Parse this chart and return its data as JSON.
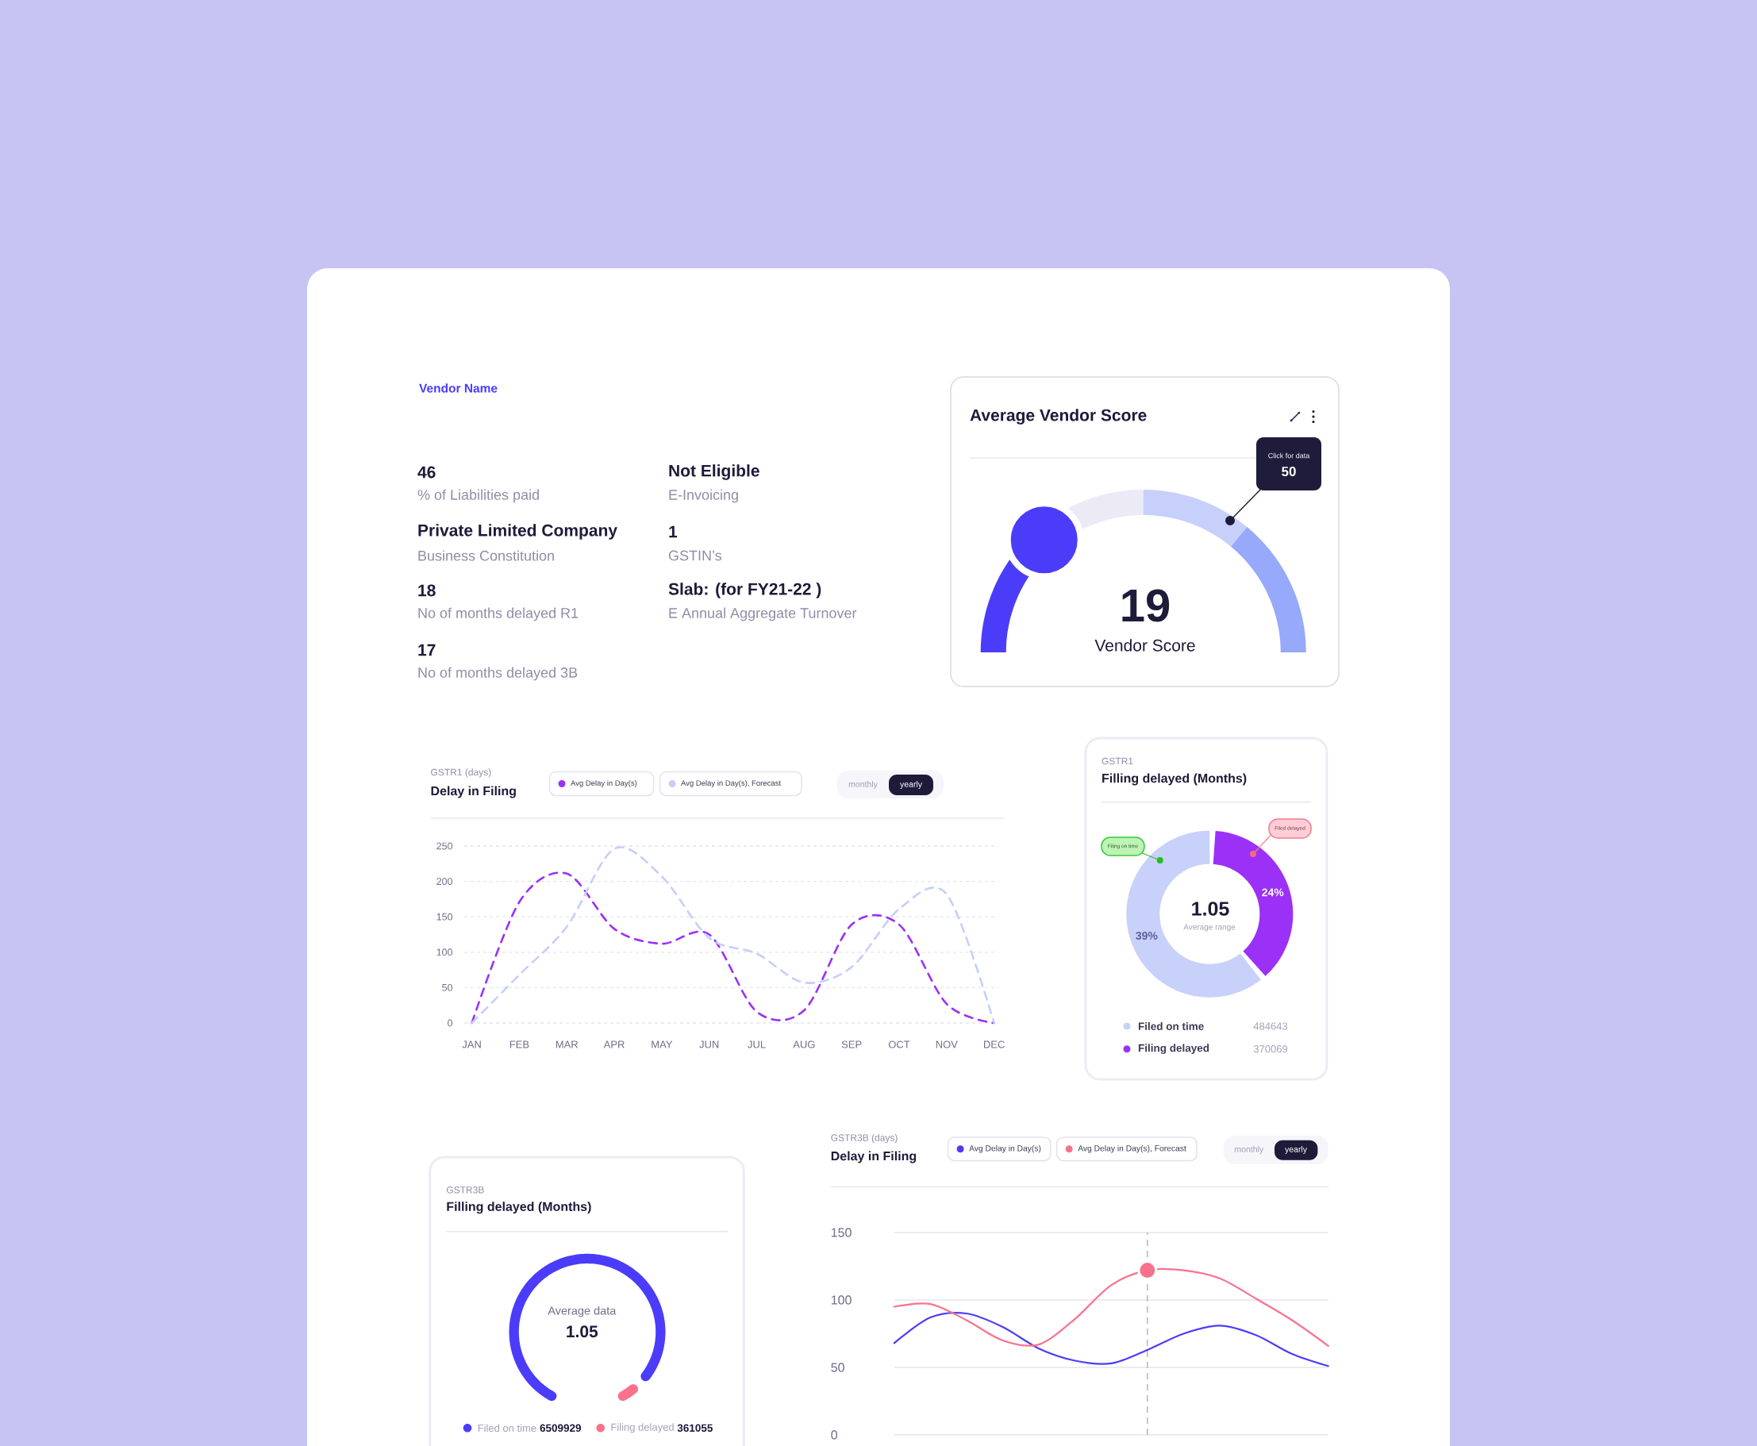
{
  "chart_data": [
    {
      "type": "other",
      "title": "Vendor Name",
      "annotations": [
        "46",
        "% of Liabilities paid",
        "Not Eligible",
        "E-Invoicing",
        "Private Limited Company",
        "Business Constitution",
        "1",
        "GSTIN’s",
        "18",
        "No of months delayed R1",
        "Slab: (for FY21-22 )",
        "E Annual Aggregate Turnover",
        "17",
        "No of months delayed 3B"
      ]
    },
    {
      "type": "donut",
      "title": "Average Vendor Score",
      "categories": [
        null,
        null,
        null,
        null
      ],
      "values": [
        27,
        23,
        22,
        28
      ],
      "colors": [
        "#4b3cfa",
        "#ebeaf5",
        "#c7d0fa",
        "#97a9fa"
      ],
      "annotations": [
        "19",
        "Vendor Score",
        "Click for data",
        "50"
      ]
    },
    {
      "type": "line",
      "subtitle": "GSTR1 (days)",
      "title": "Delay in Filing",
      "categories": [
        "JAN",
        "FEB",
        "MAR",
        "APR",
        "MAY",
        "JUN",
        "JUL",
        "AUG",
        "SEP",
        "OCT",
        "NOV",
        "DEC"
      ],
      "series": [
        {
          "name": "Avg Delay in Day(s)",
          "color": "#9b31f7",
          "values": [
            0,
            171,
            211,
            133,
            112,
            125,
            16,
            18,
            139,
            139,
            27,
            0
          ]
        },
        {
          "name": "Avg Delay in Day(s), Forecast",
          "color": "#c5cff8",
          "values": [
            0,
            68,
            136,
            246,
            207,
            120,
            98,
            57,
            79,
            161,
            182,
            0
          ]
        }
      ],
      "ylim": [
        0,
        250
      ],
      "yticks": [
        0,
        50,
        100,
        150,
        200,
        250
      ],
      "grid": "y",
      "legend": "top",
      "line_style": "dashed",
      "annotations": [
        "monthly",
        "yearly"
      ]
    },
    {
      "type": "donut",
      "subtitle": "GSTR1",
      "title": "Filling delayed (Months)",
      "categories": [
        "Filed on time",
        "Filing delayed"
      ],
      "values": [
        39,
        24
      ],
      "value_labels": [
        "39%",
        "24%"
      ],
      "colors": [
        "#c8d1fa",
        "#9b31f7"
      ],
      "legend": "bottom",
      "annotations": [
        "1.05",
        "Average range",
        "Filing on time",
        "Filed delayed",
        "484643",
        "370069"
      ]
    },
    {
      "type": "donut",
      "subtitle": "GSTR3B",
      "title": "Filling delayed (Months)",
      "categories": [
        "Filed on time",
        "Filing delayed"
      ],
      "values": [
        6509929,
        361055
      ],
      "colors": [
        "#4b3cfa",
        "#f9728c"
      ],
      "legend": "bottom",
      "data_labels": true,
      "annotations": [
        "Average data",
        "1.05"
      ]
    },
    {
      "type": "line",
      "subtitle": "GSTR3B (days)",
      "title": "Delay in Filing",
      "categories": [
        null,
        null,
        null,
        null,
        null,
        null,
        null,
        null,
        null,
        null,
        null,
        null,
        null
      ],
      "series": [
        {
          "name": "Avg Delay in Day(s)",
          "color": "#4b3cfa",
          "values": [
            68,
            87,
            90,
            80,
            64,
            55,
            53,
            63,
            75,
            81,
            74,
            60,
            51
          ]
        },
        {
          "name": "Avg Delay in Day(s), Forecast",
          "color": "#f9728c",
          "values": [
            95,
            97,
            85,
            70,
            67,
            86,
            111,
            122,
            122,
            116,
            101,
            85,
            66
          ]
        },
        {
          "type": "scatter",
          "color": "#f9728c",
          "values": [
            null,
            null,
            null,
            null,
            null,
            null,
            null,
            122,
            null,
            null,
            null,
            null,
            null
          ]
        }
      ],
      "ylim": [
        0,
        150
      ],
      "yticks": [
        0,
        50,
        100,
        150
      ],
      "grid": "y",
      "legend": "top",
      "tick_labels": "y",
      "annotations": [
        "monthly",
        "yearly"
      ]
    }
  ]
}
